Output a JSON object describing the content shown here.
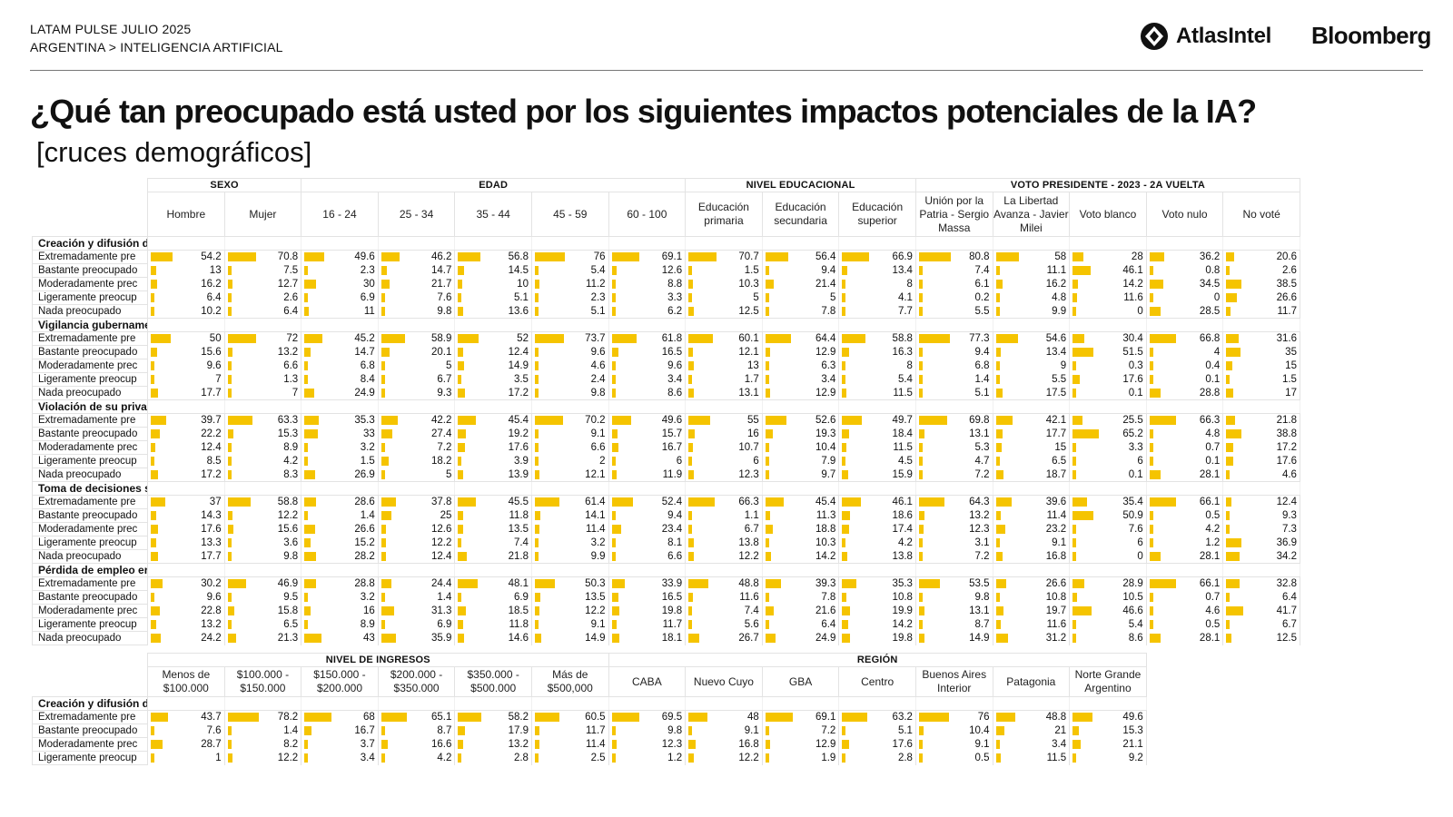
{
  "header": {
    "line1": "LATAM PULSE JULIO 2025",
    "line2": "ARGENTINA > INTELIGENCIA ARTIFICIAL",
    "logo_atlas": "AtlasIntel",
    "logo_bloomberg": "Bloomberg"
  },
  "title": "¿Qué tan preocupado está usted por los siguientes impactos potenciales de la IA?",
  "subtitle": "[cruces demográficos]",
  "colors": {
    "bar": "#f5c400",
    "border": "#e3e3e3"
  },
  "chart_data": [
    {
      "type": "table",
      "title": "¿Qué tan preocupado está usted por los siguientes impactos potenciales de la IA?",
      "groups": [
        {
          "label": "SEXO",
          "span": 2
        },
        {
          "label": "EDAD",
          "span": 5
        },
        {
          "label": "NIVEL EDUCACIONAL",
          "span": 3
        },
        {
          "label": "VOTO PRESIDENTE - 2023 - 2A VUELTA",
          "span": 5
        }
      ],
      "columns": [
        "Hombre",
        "Mujer",
        "16 - 24",
        "25 - 34",
        "35 - 44",
        "45 - 59",
        "60 - 100",
        "Educación primaria",
        "Educación secundaria",
        "Educación superior",
        "Unión por la Patria - Sergio Massa",
        "La Libertad Avanza - Javier Milei",
        "Voto blanco",
        "Voto nulo",
        "No voté"
      ],
      "sections": [
        {
          "label": "Creación y difusión d",
          "rows": [
            {
              "label": "Extremadamente pre",
              "values": [
                54.2,
                70.8,
                49.6,
                46.2,
                56.8,
                76,
                69.1,
                70.7,
                56.4,
                66.9,
                80.8,
                58,
                28,
                36.2,
                20.6
              ]
            },
            {
              "label": "Bastante preocupado",
              "values": [
                13,
                7.5,
                2.3,
                14.7,
                14.5,
                5.4,
                12.6,
                1.5,
                9.4,
                13.4,
                7.4,
                11.1,
                46.1,
                0.8,
                2.6
              ]
            },
            {
              "label": "Moderadamente prec",
              "values": [
                16.2,
                12.7,
                30,
                21.7,
                10,
                11.2,
                8.8,
                10.3,
                21.4,
                8,
                6.1,
                16.2,
                14.2,
                34.5,
                38.5
              ]
            },
            {
              "label": "Ligeramente preocup",
              "values": [
                6.4,
                2.6,
                6.9,
                7.6,
                5.1,
                2.3,
                3.3,
                5,
                5,
                4.1,
                0.2,
                4.8,
                11.6,
                0,
                26.6
              ]
            },
            {
              "label": "Nada preocupado",
              "values": [
                10.2,
                6.4,
                11,
                9.8,
                13.6,
                5.1,
                6.2,
                12.5,
                7.8,
                7.7,
                5.5,
                9.9,
                0,
                28.5,
                11.7
              ]
            }
          ]
        },
        {
          "label": "Vigilancia gubername",
          "rows": [
            {
              "label": "Extremadamente pre",
              "values": [
                50,
                72,
                45.2,
                58.9,
                52,
                73.7,
                61.8,
                60.1,
                64.4,
                58.8,
                77.3,
                54.6,
                30.4,
                66.8,
                31.6
              ]
            },
            {
              "label": "Bastante preocupado",
              "values": [
                15.6,
                13.2,
                14.7,
                20.1,
                12.4,
                9.6,
                16.5,
                12.1,
                12.9,
                16.3,
                9.4,
                13.4,
                51.5,
                4,
                35
              ]
            },
            {
              "label": "Moderadamente prec",
              "values": [
                9.6,
                6.6,
                6.8,
                5,
                14.9,
                4.6,
                9.6,
                13,
                6.3,
                8,
                6.8,
                9,
                0.3,
                0.4,
                15
              ]
            },
            {
              "label": "Ligeramente preocup",
              "values": [
                7,
                1.3,
                8.4,
                6.7,
                3.5,
                2.4,
                3.4,
                1.7,
                3.4,
                5.4,
                1.4,
                5.5,
                17.6,
                0.1,
                1.5
              ]
            },
            {
              "label": "Nada preocupado",
              "values": [
                17.7,
                7,
                24.9,
                9.3,
                17.2,
                9.8,
                8.6,
                13.1,
                12.9,
                11.5,
                5.1,
                17.5,
                0.1,
                28.8,
                17
              ]
            }
          ]
        },
        {
          "label": "Violación de su priva",
          "rows": [
            {
              "label": "Extremadamente pre",
              "values": [
                39.7,
                63.3,
                35.3,
                42.2,
                45.4,
                70.2,
                49.6,
                55,
                52.6,
                49.7,
                69.8,
                42.1,
                25.5,
                66.3,
                21.8
              ]
            },
            {
              "label": "Bastante preocupado",
              "values": [
                22.2,
                15.3,
                33,
                27.4,
                19.2,
                9.1,
                15.7,
                16,
                19.3,
                18.4,
                13.1,
                17.7,
                65.2,
                4.8,
                38.8
              ]
            },
            {
              "label": "Moderadamente prec",
              "values": [
                12.4,
                8.9,
                3.2,
                7.2,
                17.6,
                6.6,
                16.7,
                10.7,
                10.4,
                11.5,
                5.3,
                15,
                3.3,
                0.7,
                17.2
              ]
            },
            {
              "label": "Ligeramente preocup",
              "values": [
                8.5,
                4.2,
                1.5,
                18.2,
                3.9,
                2,
                6,
                6,
                7.9,
                4.5,
                4.7,
                6.5,
                6,
                0.1,
                17.6
              ]
            },
            {
              "label": "Nada preocupado",
              "values": [
                17.2,
                8.3,
                26.9,
                5,
                13.9,
                12.1,
                11.9,
                12.3,
                9.7,
                15.9,
                7.2,
                18.7,
                0.1,
                28.1,
                4.6
              ]
            }
          ]
        },
        {
          "label": "Toma de decisiones s",
          "rows": [
            {
              "label": "Extremadamente pre",
              "values": [
                37,
                58.8,
                28.6,
                37.8,
                45.5,
                61.4,
                52.4,
                66.3,
                45.4,
                46.1,
                64.3,
                39.6,
                35.4,
                66.1,
                12.4
              ]
            },
            {
              "label": "Bastante preocupado",
              "values": [
                14.3,
                12.2,
                1.4,
                25,
                11.8,
                14.1,
                9.4,
                1.1,
                11.3,
                18.6,
                13.2,
                11.4,
                50.9,
                0.5,
                9.3
              ]
            },
            {
              "label": "Moderadamente prec",
              "values": [
                17.6,
                15.6,
                26.6,
                12.6,
                13.5,
                11.4,
                23.4,
                6.7,
                18.8,
                17.4,
                12.3,
                23.2,
                7.6,
                4.2,
                7.3
              ]
            },
            {
              "label": "Ligeramente preocup",
              "values": [
                13.3,
                3.6,
                15.2,
                12.2,
                7.4,
                3.2,
                8.1,
                13.8,
                10.3,
                4.2,
                3.1,
                9.1,
                6,
                1.2,
                36.9
              ]
            },
            {
              "label": "Nada preocupado",
              "values": [
                17.7,
                9.8,
                28.2,
                12.4,
                21.8,
                9.9,
                6.6,
                12.2,
                14.2,
                13.8,
                7.2,
                16.8,
                0,
                28.1,
                34.2
              ]
            }
          ]
        },
        {
          "label": "Pérdida de empleo er",
          "rows": [
            {
              "label": "Extremadamente pre",
              "values": [
                30.2,
                46.9,
                28.8,
                24.4,
                48.1,
                50.3,
                33.9,
                48.8,
                39.3,
                35.3,
                53.5,
                26.6,
                28.9,
                66.1,
                32.8
              ]
            },
            {
              "label": "Bastante preocupado",
              "values": [
                9.6,
                9.5,
                3.2,
                1.4,
                6.9,
                13.5,
                16.5,
                11.6,
                7.8,
                10.8,
                9.8,
                10.8,
                10.5,
                0.7,
                6.4
              ]
            },
            {
              "label": "Moderadamente prec",
              "values": [
                22.8,
                15.8,
                16,
                31.3,
                18.5,
                12.2,
                19.8,
                7.4,
                21.6,
                19.9,
                13.1,
                19.7,
                46.6,
                4.6,
                41.7
              ]
            },
            {
              "label": "Ligeramente preocup",
              "values": [
                13.2,
                6.5,
                8.9,
                6.9,
                11.8,
                9.1,
                11.7,
                5.6,
                6.4,
                14.2,
                8.7,
                11.6,
                5.4,
                0.5,
                6.7
              ]
            },
            {
              "label": "Nada preocupado",
              "values": [
                24.2,
                21.3,
                43,
                35.9,
                14.6,
                14.9,
                18.1,
                26.7,
                24.9,
                19.8,
                14.9,
                31.2,
                8.6,
                28.1,
                12.5
              ]
            }
          ]
        }
      ]
    },
    {
      "type": "table",
      "title": "",
      "groups": [
        {
          "label": "NIVEL DE INGRESOS",
          "span": 6
        },
        {
          "label": "REGIÓN",
          "span": 7
        }
      ],
      "columns": [
        "Menos de $100.000",
        "$100.000 - $150.000",
        "$150.000 - $200.000",
        "$200.000 - $350.000",
        "$350.000 - $500.000",
        "Más de $500,000",
        "CABA",
        "Nuevo Cuyo",
        "GBA",
        "Centro",
        "Buenos Aires Interior",
        "Patagonia",
        "Norte Grande Argentino"
      ],
      "sections": [
        {
          "label": "Creación y difusión d",
          "rows": [
            {
              "label": "Extremadamente pre",
              "values": [
                43.7,
                78.2,
                68,
                65.1,
                58.2,
                60.5,
                69.5,
                48,
                69.1,
                63.2,
                76,
                48.8,
                49.6
              ]
            },
            {
              "label": "Bastante preocupado",
              "values": [
                7.6,
                1.4,
                16.7,
                8.7,
                17.9,
                11.7,
                9.8,
                9.1,
                7.2,
                5.1,
                10.4,
                21,
                15.3
              ]
            },
            {
              "label": "Moderadamente prec",
              "values": [
                28.7,
                8.2,
                3.7,
                16.6,
                13.2,
                11.4,
                12.3,
                16.8,
                12.9,
                17.6,
                9.1,
                3.4,
                21.1
              ]
            },
            {
              "label": "Ligeramente preocup",
              "values": [
                1,
                12.2,
                3.4,
                4.2,
                2.8,
                2.5,
                1.2,
                12.2,
                1.9,
                2.8,
                0.5,
                11.5,
                9.2
              ]
            }
          ]
        }
      ]
    }
  ]
}
